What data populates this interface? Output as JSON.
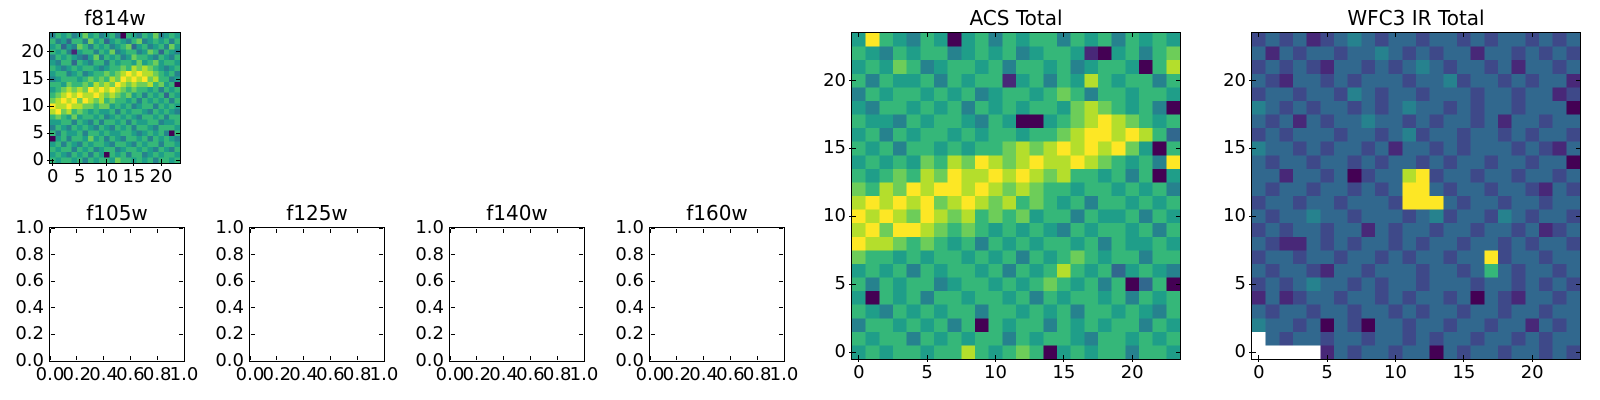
{
  "figure": {
    "background": "#ffffff",
    "axis_color": "#000000",
    "text_color": "#000000",
    "colormap": "viridis"
  },
  "palette": {
    "0": "#440154",
    "1": "#482878",
    "2": "#3e4989",
    "3": "#31688e",
    "4": "#26828e",
    "5": "#1f9e89",
    "6": "#35b779",
    "7": "#6dcd59",
    "8": "#b4de2c",
    "9": "#fde725",
    "W": "#ffffff"
  },
  "value_encoding": "rows are strings, top row first; chars 0-9 map to viridis palette low-to-high, W = blank/NaN (white)",
  "chart_data": [
    {
      "type": "heatmap",
      "title": "f814w",
      "grid_size": 24,
      "x_range": [
        0,
        24
      ],
      "y_range": [
        0,
        24
      ],
      "x_tick_values": [
        0,
        5,
        10,
        15,
        20
      ],
      "x_tick_labels": [
        "0",
        "5",
        "10",
        "15",
        "20"
      ],
      "y_tick_values": [
        0,
        5,
        10,
        15,
        20
      ],
      "y_tick_labels": [
        "0",
        "5",
        "10",
        "15",
        "20"
      ],
      "rows": [
        "465645756456406546574565",
        "645366475635654674565646",
        "563547646564567356456475",
        "656415664657456645763654",
        "465654357465645766546546",
        "546636546646566575675665",
        "654565665456676878765456",
        "566456456676789898876564",
        "456665676768798989786645",
        "665766768787987877867560",
        "567878798989876766564656",
        "678989889878767564656365",
        "789897987867665646565646",
        "988988776775656456646565",
        "897867656556465665465654",
        "676575665645656546656466",
        "556646546466564655664556",
        "465465654654656466546665",
        "646556466565566545656406",
        "056466575646546656465654",
        "564654656654665465664665",
        "656646564566456656546546",
        "565465646506564664565665",
        "656656465665766565646656"
      ]
    },
    {
      "type": "empty",
      "title": "f105w",
      "x_range": [
        0,
        1
      ],
      "y_range": [
        0,
        1
      ],
      "x_tick_values": [
        0,
        0.2,
        0.4,
        0.6,
        0.8,
        1
      ],
      "x_tick_labels": [
        "0.0",
        "0.2",
        "0.4",
        "0.6",
        "0.8",
        "1.0"
      ],
      "y_tick_values": [
        0,
        0.2,
        0.4,
        0.6,
        0.8,
        1
      ],
      "y_tick_labels": [
        "0.0",
        "0.2",
        "0.4",
        "0.6",
        "0.8",
        "1.0"
      ]
    },
    {
      "type": "empty",
      "title": "f125w",
      "x_range": [
        0,
        1
      ],
      "y_range": [
        0,
        1
      ],
      "x_tick_values": [
        0,
        0.2,
        0.4,
        0.6,
        0.8,
        1
      ],
      "x_tick_labels": [
        "0.0",
        "0.2",
        "0.4",
        "0.6",
        "0.8",
        "1.0"
      ],
      "y_tick_values": [
        0,
        0.2,
        0.4,
        0.6,
        0.8,
        1
      ],
      "y_tick_labels": [
        "0.0",
        "0.2",
        "0.4",
        "0.6",
        "0.8",
        "1.0"
      ]
    },
    {
      "type": "empty",
      "title": "f140w",
      "x_range": [
        0,
        1
      ],
      "y_range": [
        0,
        1
      ],
      "x_tick_values": [
        0,
        0.2,
        0.4,
        0.6,
        0.8,
        1
      ],
      "x_tick_labels": [
        "0.0",
        "0.2",
        "0.4",
        "0.6",
        "0.8",
        "1.0"
      ],
      "y_tick_values": [
        0,
        0.2,
        0.4,
        0.6,
        0.8,
        1
      ],
      "y_tick_labels": [
        "0.0",
        "0.2",
        "0.4",
        "0.6",
        "0.8",
        "1.0"
      ]
    },
    {
      "type": "empty",
      "title": "f160w",
      "x_range": [
        0,
        1
      ],
      "y_range": [
        0,
        1
      ],
      "x_tick_values": [
        0,
        0.2,
        0.4,
        0.6,
        0.8,
        1
      ],
      "x_tick_labels": [
        "0.0",
        "0.2",
        "0.4",
        "0.6",
        "0.8",
        "1.0"
      ],
      "y_tick_values": [
        0,
        0.2,
        0.4,
        0.6,
        0.8,
        1
      ],
      "y_tick_labels": [
        "0.0",
        "0.2",
        "0.4",
        "0.6",
        "0.8",
        "1.0"
      ]
    },
    {
      "type": "heatmap",
      "title": "ACS Total",
      "grid_size": 24,
      "x_range": [
        0,
        24
      ],
      "y_range": [
        0,
        24
      ],
      "x_tick_values": [
        0,
        5,
        10,
        15,
        20
      ],
      "x_tick_labels": [
        "0",
        "5",
        "10",
        "15",
        "20"
      ],
      "y_tick_values": [
        0,
        5,
        10,
        15,
        20
      ],
      "y_tick_labels": [
        "0",
        "5",
        "10",
        "15",
        "20"
      ],
      "rows": [
        "596546505646566465646565",
        "654656645656456651056467",
        "565764566564665645665068",
        "646556465661564658656646",
        "465665656456656764665665",
        "546656564656566578765640",
        "655465665465005678987656",
        "564656656566566789989863",
        "656466565667878989897506",
        "565657687987898898765649",
        "656768798898987866564605",
        "768798998987876656656564",
        "898989789878676564665656",
        "989879878676756646556465",
        "897998767656565465665646",
        "988767656465656656465565",
        "766565665656465676566466",
        "565646566564656865635654",
        "646566456656567656460360",
        "506564665665646566564656",
        "654656566466565646656546",
        "466565646065664656566465",
        "656646565664656654665656",
        "565665668656760565664665"
      ]
    },
    {
      "type": "heatmap",
      "title": "WFC3 IR Total",
      "grid_size": 24,
      "x_range": [
        0,
        24
      ],
      "y_range": [
        0,
        24
      ],
      "x_tick_values": [
        0,
        5,
        10,
        15,
        20
      ],
      "x_tick_labels": [
        "0",
        "5",
        "10",
        "15",
        "20"
      ],
      "y_tick_values": [
        0,
        5,
        10,
        15,
        20
      ],
      "y_tick_labels": [
        "0",
        "5",
        "10",
        "15",
        "20"
      ],
      "rows": [
        "232312343233233232332323",
        "313233233432323313323232",
        "232321332323432332313323",
        "321332323332334233232331",
        "233233243233233323323312",
        "432323323234332323323330",
        "323132334332323323133233",
        "232333233234233233232332",
        "433232332313323233323213",
        "323323323233232332332330",
        "331332302338923323323323",
        "323323323239932332332132",
        "233233233329993233233233",
        "323343323332342332432332",
        "232332331323323323323123",
        "321132323323233233232332",
        "233233233232332339233233",
        "323321332333233236323323",
        "232343323233233323323232",
        "131233233232332303213323",
        "323323323323233233233233",
        "433230320332332332331323",
        "W32332332332323323323233",
        "WWWWW1323323303233233232"
      ]
    }
  ]
}
